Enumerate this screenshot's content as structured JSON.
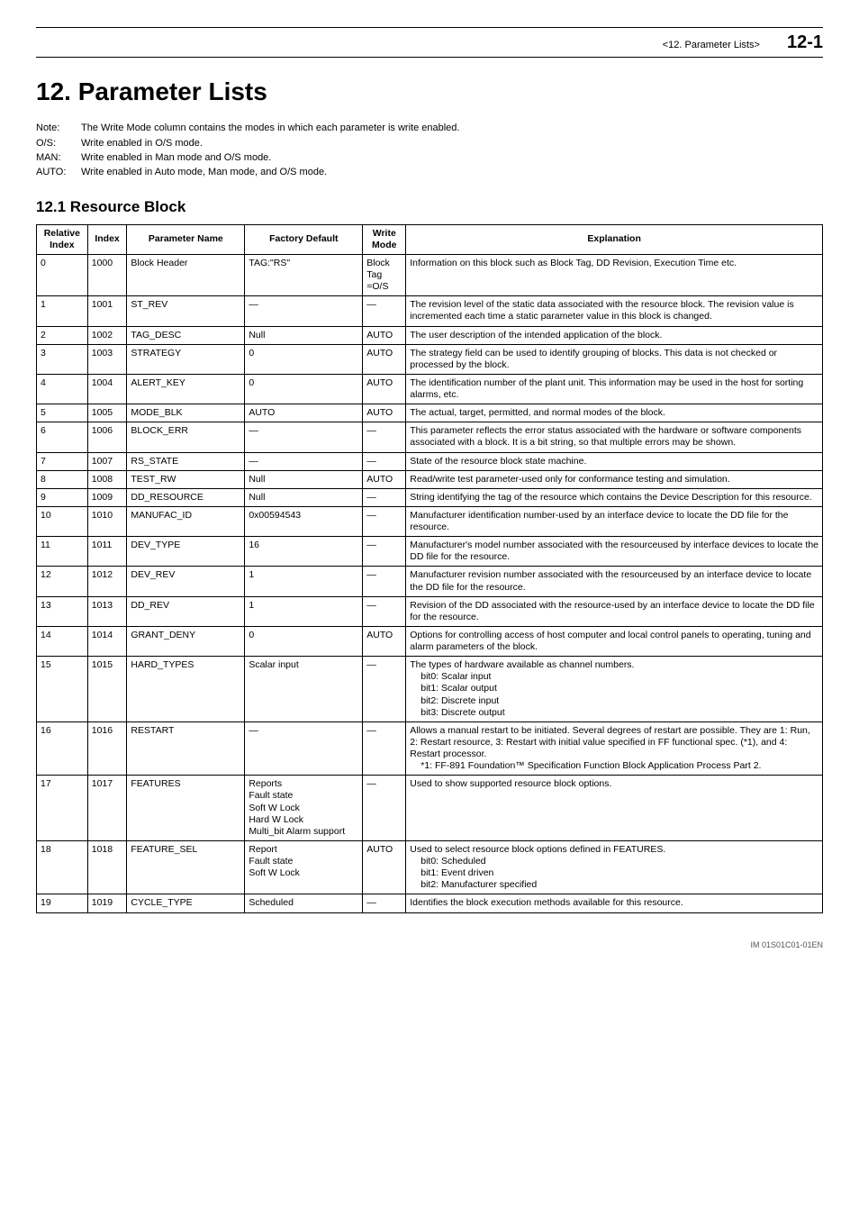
{
  "header": {
    "section_ref": "<12.  Parameter Lists>",
    "page_number": "12-1"
  },
  "title": "12.   Parameter Lists",
  "notes": [
    {
      "label": "Note:",
      "text": "The Write Mode column contains the modes in which each parameter is write enabled."
    },
    {
      "label": "O/S:",
      "text": "Write enabled in O/S mode."
    },
    {
      "label": "MAN:",
      "text": "Write enabled in Man mode and O/S mode."
    },
    {
      "label": "AUTO:",
      "text": "Write enabled in Auto mode, Man mode, and O/S mode."
    }
  ],
  "section_heading": "12.1  Resource Block",
  "table": {
    "columns": [
      "Relative Index",
      "Index",
      "Parameter Name",
      "Factory Default",
      "Write Mode",
      "Explanation"
    ],
    "rows": [
      {
        "rel": "0",
        "idx": "1000",
        "name": "Block Header",
        "def": "TAG:\"RS\"",
        "mode": "Block Tag =O/S",
        "exp": "Information on this block such as Block Tag, DD Revision, Execution Time etc."
      },
      {
        "rel": "1",
        "idx": "1001",
        "name": "ST_REV",
        "def": "—",
        "mode": "—",
        "exp": "The revision level of the static data associated with the resource block. The revision value is incremented each time a static parameter value in this block is changed."
      },
      {
        "rel": "2",
        "idx": "1002",
        "name": "TAG_DESC",
        "def": "Null",
        "mode": "AUTO",
        "exp": "The user description of the intended application of the block."
      },
      {
        "rel": "3",
        "idx": "1003",
        "name": "STRATEGY",
        "def": "0",
        "mode": "AUTO",
        "exp": "The strategy field can be used to identify grouping of blocks. This data is not checked or processed by the block."
      },
      {
        "rel": "4",
        "idx": "1004",
        "name": "ALERT_KEY",
        "def": "0",
        "mode": "AUTO",
        "exp": "The identification number of the plant unit. This information may be used in the host for sorting alarms, etc."
      },
      {
        "rel": "5",
        "idx": "1005",
        "name": "MODE_BLK",
        "def": "AUTO",
        "mode": "AUTO",
        "exp": "The actual, target, permitted, and normal modes of the block."
      },
      {
        "rel": "6",
        "idx": "1006",
        "name": "BLOCK_ERR",
        "def": "—",
        "mode": "—",
        "exp": "This parameter reflects the error status associated with the hardware or software components associated with a block. It is a bit string, so that multiple errors may be shown."
      },
      {
        "rel": "7",
        "idx": "1007",
        "name": "RS_STATE",
        "def": "—",
        "mode": "—",
        "exp": "State of the resource block state machine."
      },
      {
        "rel": "8",
        "idx": "1008",
        "name": "TEST_RW",
        "def": "Null",
        "mode": "AUTO",
        "exp": "Read/write test parameter-used only for conformance testing and simulation."
      },
      {
        "rel": "9",
        "idx": "1009",
        "name": "DD_RESOURCE",
        "def": "Null",
        "mode": "—",
        "exp": "String identifying the tag of the resource which contains the Device Description for this resource."
      },
      {
        "rel": "10",
        "idx": "1010",
        "name": "MANUFAC_ID",
        "def": "0x00594543",
        "mode": "—",
        "exp": "Manufacturer identification number-used by an interface device to locate the DD file for the resource."
      },
      {
        "rel": "11",
        "idx": "1011",
        "name": "DEV_TYPE",
        "def": "16",
        "mode": "—",
        "exp": "Manufacturer's model number associated with the resourceused by interface devices to locate the DD file for the resource."
      },
      {
        "rel": "12",
        "idx": "1012",
        "name": "DEV_REV",
        "def": "1",
        "mode": "—",
        "exp": "Manufacturer revision number associated with the resourceused by an interface device to locate the DD file for the resource."
      },
      {
        "rel": "13",
        "idx": "1013",
        "name": "DD_REV",
        "def": "1",
        "mode": "—",
        "exp": "Revision of the DD associated with the resource-used by an interface device to locate the DD file for the resource."
      },
      {
        "rel": "14",
        "idx": "1014",
        "name": "GRANT_DENY",
        "def": "0",
        "mode": "AUTO",
        "exp": "Options for controlling access of host computer and local control panels to operating, tuning and alarm parameters of the block."
      },
      {
        "rel": "15",
        "idx": "1015",
        "name": "HARD_TYPES",
        "def": "Scalar input",
        "mode": "—",
        "exp_main": "The types of hardware available as channel numbers.",
        "exp_lines": [
          "bit0: Scalar input",
          "bit1: Scalar output",
          "bit2: Discrete input",
          "bit3: Discrete output"
        ]
      },
      {
        "rel": "16",
        "idx": "1016",
        "name": "RESTART",
        "def": "—",
        "mode": "—",
        "exp_main": "Allows a manual restart to be initiated. Several degrees of restart are possible. They are 1: Run, 2: Restart resource, 3: Restart with initial value specified in FF functional spec. (*1), and 4: Restart processor.",
        "exp_lines": [
          "*1: FF-891 Foundation™ Specification Function Block Application Process Part 2."
        ]
      },
      {
        "rel": "17",
        "idx": "1017",
        "name": "FEATURES",
        "def_lines": [
          "Reports",
          "Fault state",
          "Soft W Lock",
          "Hard W Lock",
          "Multi_bit Alarm support"
        ],
        "mode": "—",
        "exp": "Used to show supported resource block options."
      },
      {
        "rel": "18",
        "idx": "1018",
        "name": "FEATURE_SEL",
        "def_lines": [
          "Report",
          "Fault state",
          "Soft W Lock"
        ],
        "mode": "AUTO",
        "exp_main": "Used to select resource block options defined in FEATURES.",
        "exp_lines": [
          "bit0: Scheduled",
          "bit1: Event driven",
          "bit2: Manufacturer specified"
        ]
      },
      {
        "rel": "19",
        "idx": "1019",
        "name": "CYCLE_TYPE",
        "def": "Scheduled",
        "mode": "—",
        "exp": "Identifies the block execution methods available for this resource."
      }
    ]
  },
  "footer": "IM 01S01C01-01EN"
}
